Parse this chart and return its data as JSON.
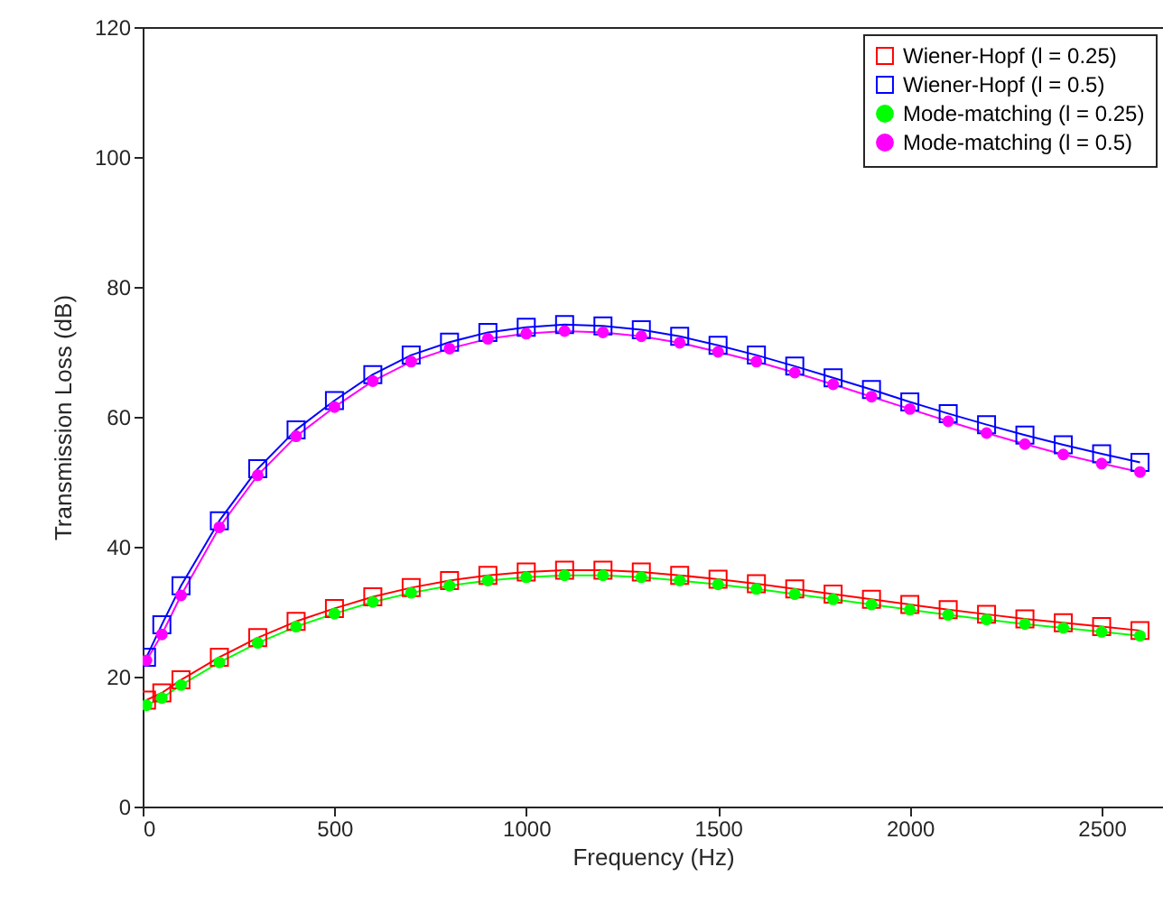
{
  "chart_data": {
    "type": "line",
    "xlabel": "Frequency (Hz)",
    "ylabel": "Transmission Loss (dB)",
    "xlim": [
      0,
      2660
    ],
    "xticks": [
      0,
      500,
      1000,
      1500,
      2000,
      2500
    ],
    "ylim": [
      0,
      120
    ],
    "yticks": [
      0,
      20,
      40,
      60,
      80,
      100,
      120
    ],
    "grid": false,
    "legend": "top right",
    "x": [
      10,
      50,
      100,
      200,
      300,
      400,
      500,
      600,
      700,
      800,
      900,
      1000,
      1100,
      1200,
      1300,
      1400,
      1500,
      1600,
      1700,
      1800,
      1900,
      2000,
      2100,
      2200,
      2300,
      2400,
      2500,
      2600
    ],
    "series": [
      {
        "name": "Wiener-Hopf (l = 0.25)",
        "color": "#ff0000",
        "marker": "square",
        "values": [
          16.4,
          17.5,
          19.5,
          23,
          26,
          28.5,
          30.5,
          32.3,
          33.7,
          34.8,
          35.6,
          36.1,
          36.4,
          36.4,
          36.1,
          35.6,
          35,
          34.3,
          33.5,
          32.7,
          31.9,
          31.1,
          30.3,
          29.6,
          28.9,
          28.3,
          27.7,
          27.1
        ]
      },
      {
        "name": "Wiener-Hopf (l = 0.5)",
        "color": "#0000ff",
        "marker": "square",
        "values": [
          23,
          28,
          34,
          44,
          52,
          58,
          62.5,
          66.5,
          69.5,
          71.5,
          73,
          73.8,
          74.2,
          74,
          73.4,
          72.4,
          71,
          69.5,
          67.8,
          66,
          64.2,
          62.3,
          60.5,
          58.8,
          57.2,
          55.7,
          54.3,
          53
        ]
      },
      {
        "name": "Mode-matching (l = 0.25)",
        "color": "#00ff00",
        "marker": "circle",
        "values": [
          15.6,
          16.7,
          18.7,
          22.2,
          25.2,
          27.7,
          29.7,
          31.5,
          32.9,
          34,
          34.8,
          35.3,
          35.6,
          35.6,
          35.3,
          34.8,
          34.2,
          33.5,
          32.7,
          31.9,
          31.1,
          30.3,
          29.5,
          28.8,
          28.1,
          27.5,
          26.9,
          26.3
        ]
      },
      {
        "name": "Mode-matching (l = 0.5)",
        "color": "#ff00ff",
        "marker": "circle",
        "values": [
          22.5,
          26.5,
          32.5,
          43,
          51,
          57,
          61.5,
          65.5,
          68.5,
          70.5,
          72,
          72.8,
          73.2,
          73,
          72.4,
          71.4,
          70,
          68.5,
          66.8,
          65,
          63.1,
          61.2,
          59.3,
          57.5,
          55.8,
          54.2,
          52.8,
          51.5
        ]
      }
    ]
  }
}
